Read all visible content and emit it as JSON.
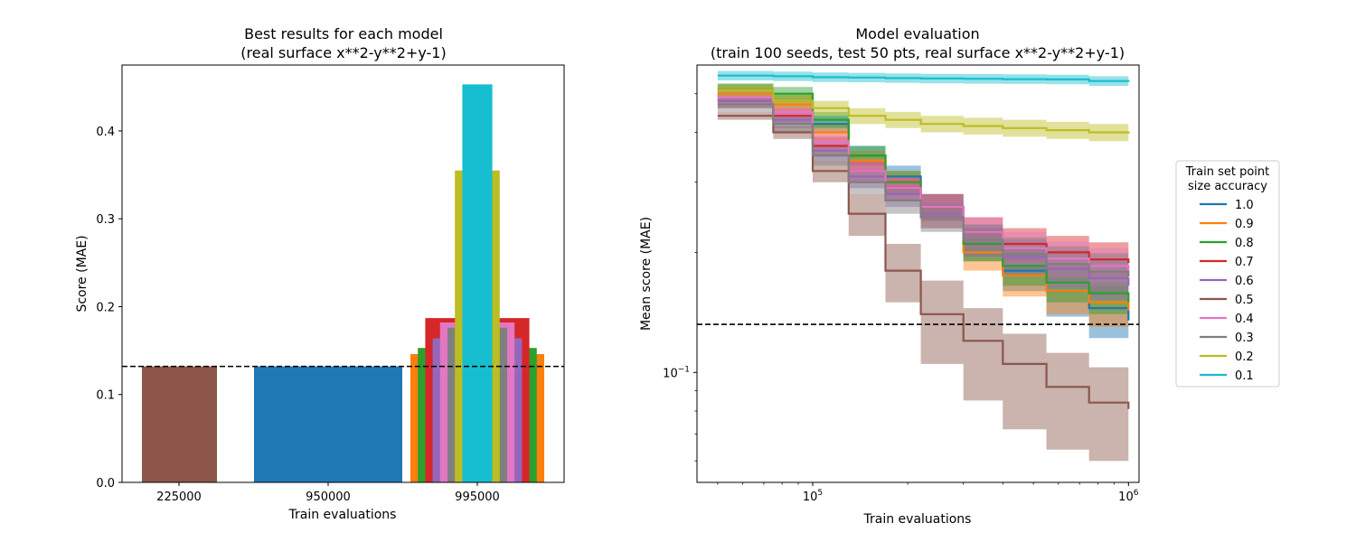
{
  "colors": {
    "tab_blue": "#1f77b4",
    "tab_orange": "#ff7f0e",
    "tab_green": "#2ca02c",
    "tab_red": "#d62728",
    "tab_purple": "#9467bd",
    "tab_brown": "#8c564b",
    "tab_pink": "#e377c2",
    "tab_gray": "#7f7f7f",
    "tab_olive": "#bcbd22",
    "tab_cyan": "#17becf"
  },
  "chart_data": [
    {
      "type": "bar",
      "title_line1": "Best results for each model",
      "title_line2": "(real surface x**2-y**2+y-1)",
      "xlabel": "Train evaluations",
      "ylabel": "Score (MAE)",
      "categories": [
        "225000",
        "950000",
        "995000"
      ],
      "ylim": [
        0,
        0.475
      ],
      "yticks": [
        "0.0",
        "0.1",
        "0.2",
        "0.3",
        "0.4"
      ],
      "yticks_values": [
        0.0,
        0.1,
        0.2,
        0.3,
        0.4
      ],
      "reference_line": 0.132,
      "grid": false,
      "bars": [
        {
          "group": 0,
          "accuracy": "0.5",
          "value": 0.132,
          "color": "#8c564b"
        },
        {
          "group": 1,
          "accuracy": "1.0",
          "value": 0.132,
          "color": "#1f77b4"
        },
        {
          "group": 2,
          "accuracy": "0.9",
          "value": 0.146,
          "color": "#ff7f0e"
        },
        {
          "group": 2,
          "accuracy": "0.8",
          "value": 0.153,
          "color": "#2ca02c"
        },
        {
          "group": 2,
          "accuracy": "0.7",
          "value": 0.187,
          "color": "#d62728"
        },
        {
          "group": 2,
          "accuracy": "0.6",
          "value": 0.164,
          "color": "#9467bd"
        },
        {
          "group": 2,
          "accuracy": "0.4",
          "value": 0.182,
          "color": "#e377c2"
        },
        {
          "group": 2,
          "accuracy": "0.3",
          "value": 0.176,
          "color": "#7f7f7f"
        },
        {
          "group": 2,
          "accuracy": "0.2",
          "value": 0.355,
          "color": "#bcbd22"
        },
        {
          "group": 2,
          "accuracy": "0.1",
          "value": 0.453,
          "color": "#17becf"
        }
      ]
    },
    {
      "type": "line",
      "title_line1": "Model evaluation",
      "title_line2": "(train 100 seeds, test 50 pts, real surface x**2-y**2+y-1)",
      "xlabel": "Train evaluations",
      "ylabel": "Mean score (MAE)",
      "xscale": "log",
      "yscale": "log",
      "xlim": [
        43000,
        1080000
      ],
      "ylim": [
        0.053,
        0.59
      ],
      "x_major_ticks": [
        {
          "base": "10",
          "exp": "5",
          "value": 100000
        },
        {
          "base": "10",
          "exp": "6",
          "value": 1000000
        }
      ],
      "y_major_ticks": [
        {
          "base": "10",
          "exp": "−1",
          "value": 0.1
        }
      ],
      "reference_line": 0.132,
      "grid": false,
      "legend_title_line1": "Train set point",
      "legend_title_line2": "size accuracy",
      "legend_position": "outside-right",
      "x": [
        50000,
        60000,
        75000,
        100000,
        130000,
        170000,
        220000,
        300000,
        400000,
        550000,
        750000,
        1000000
      ],
      "series": [
        {
          "name": "1.0",
          "color": "#1f77b4",
          "values": [
            0.51,
            0.51,
            0.48,
            0.42,
            0.35,
            0.31,
            0.26,
            0.21,
            0.18,
            0.16,
            0.145,
            0.135
          ],
          "lower": [
            0.49,
            0.49,
            0.46,
            0.4,
            0.33,
            0.29,
            0.24,
            0.19,
            0.16,
            0.138,
            0.122,
            0.112
          ],
          "upper": [
            0.53,
            0.53,
            0.5,
            0.44,
            0.37,
            0.33,
            0.28,
            0.23,
            0.2,
            0.182,
            0.168,
            0.158
          ]
        },
        {
          "name": "0.9",
          "color": "#ff7f0e",
          "values": [
            0.5,
            0.5,
            0.47,
            0.4,
            0.34,
            0.3,
            0.25,
            0.2,
            0.175,
            0.16,
            0.15,
            0.143
          ],
          "lower": [
            0.48,
            0.48,
            0.45,
            0.38,
            0.32,
            0.28,
            0.23,
            0.18,
            0.155,
            0.14,
            0.13,
            0.125
          ],
          "upper": [
            0.52,
            0.52,
            0.49,
            0.42,
            0.36,
            0.32,
            0.27,
            0.22,
            0.195,
            0.18,
            0.17,
            0.162
          ]
        },
        {
          "name": "0.8",
          "color": "#2ca02c",
          "values": [
            0.51,
            0.51,
            0.5,
            0.43,
            0.35,
            0.3,
            0.26,
            0.21,
            0.185,
            0.168,
            0.158,
            0.15
          ],
          "lower": [
            0.49,
            0.49,
            0.48,
            0.41,
            0.33,
            0.28,
            0.24,
            0.19,
            0.165,
            0.15,
            0.14,
            0.132
          ],
          "upper": [
            0.53,
            0.53,
            0.52,
            0.45,
            0.37,
            0.32,
            0.28,
            0.23,
            0.205,
            0.188,
            0.178,
            0.17
          ]
        },
        {
          "name": "0.7",
          "color": "#d62728",
          "values": [
            0.48,
            0.48,
            0.44,
            0.37,
            0.32,
            0.29,
            0.26,
            0.225,
            0.21,
            0.2,
            0.192,
            0.188
          ],
          "lower": [
            0.46,
            0.46,
            0.42,
            0.35,
            0.3,
            0.27,
            0.24,
            0.205,
            0.19,
            0.18,
            0.172,
            0.168
          ],
          "upper": [
            0.5,
            0.5,
            0.46,
            0.39,
            0.34,
            0.31,
            0.28,
            0.245,
            0.23,
            0.22,
            0.212,
            0.208
          ]
        },
        {
          "name": "0.6",
          "color": "#9467bd",
          "values": [
            0.48,
            0.48,
            0.43,
            0.36,
            0.31,
            0.28,
            0.25,
            0.215,
            0.195,
            0.182,
            0.172,
            0.165
          ],
          "lower": [
            0.46,
            0.46,
            0.41,
            0.34,
            0.29,
            0.26,
            0.23,
            0.195,
            0.175,
            0.162,
            0.152,
            0.145
          ],
          "upper": [
            0.5,
            0.5,
            0.45,
            0.38,
            0.33,
            0.3,
            0.27,
            0.235,
            0.215,
            0.202,
            0.192,
            0.185
          ]
        },
        {
          "name": "0.5",
          "color": "#8c564b",
          "values": [
            0.44,
            0.44,
            0.4,
            0.32,
            0.25,
            0.18,
            0.14,
            0.12,
            0.105,
            0.092,
            0.084,
            0.081
          ],
          "lower": [
            0.43,
            0.43,
            0.385,
            0.3,
            0.22,
            0.15,
            0.105,
            0.085,
            0.072,
            0.064,
            0.06,
            0.058
          ],
          "upper": [
            0.45,
            0.45,
            0.415,
            0.34,
            0.28,
            0.21,
            0.17,
            0.145,
            0.125,
            0.112,
            0.103,
            0.1
          ]
        },
        {
          "name": "0.4",
          "color": "#e377c2",
          "values": [
            0.49,
            0.49,
            0.45,
            0.38,
            0.32,
            0.29,
            0.26,
            0.225,
            0.205,
            0.193,
            0.185,
            0.18
          ],
          "lower": [
            0.47,
            0.47,
            0.43,
            0.36,
            0.3,
            0.27,
            0.24,
            0.205,
            0.185,
            0.173,
            0.165,
            0.16
          ],
          "upper": [
            0.51,
            0.51,
            0.47,
            0.4,
            0.34,
            0.31,
            0.28,
            0.245,
            0.225,
            0.213,
            0.205,
            0.2
          ]
        },
        {
          "name": "0.3",
          "color": "#7f7f7f",
          "values": [
            0.47,
            0.47,
            0.42,
            0.35,
            0.3,
            0.27,
            0.245,
            0.215,
            0.198,
            0.187,
            0.179,
            0.174
          ],
          "lower": [
            0.45,
            0.45,
            0.4,
            0.33,
            0.28,
            0.25,
            0.225,
            0.195,
            0.178,
            0.167,
            0.159,
            0.154
          ],
          "upper": [
            0.49,
            0.49,
            0.44,
            0.37,
            0.32,
            0.29,
            0.265,
            0.235,
            0.218,
            0.207,
            0.199,
            0.194
          ]
        },
        {
          "name": "0.2",
          "color": "#bcbd22",
          "values": [
            0.51,
            0.51,
            0.48,
            0.46,
            0.44,
            0.43,
            0.42,
            0.415,
            0.41,
            0.405,
            0.4,
            0.397
          ],
          "lower": [
            0.49,
            0.49,
            0.46,
            0.44,
            0.42,
            0.41,
            0.4,
            0.395,
            0.39,
            0.385,
            0.38,
            0.377
          ],
          "upper": [
            0.53,
            0.53,
            0.5,
            0.48,
            0.46,
            0.45,
            0.44,
            0.435,
            0.43,
            0.425,
            0.42,
            0.417
          ]
        },
        {
          "name": "0.1",
          "color": "#17becf",
          "values": [
            0.555,
            0.555,
            0.553,
            0.55,
            0.549,
            0.547,
            0.546,
            0.545,
            0.544,
            0.543,
            0.538,
            0.535
          ],
          "lower": [
            0.54,
            0.54,
            0.538,
            0.535,
            0.534,
            0.532,
            0.531,
            0.53,
            0.529,
            0.528,
            0.523,
            0.52
          ],
          "upper": [
            0.57,
            0.57,
            0.568,
            0.565,
            0.564,
            0.562,
            0.561,
            0.56,
            0.559,
            0.558,
            0.553,
            0.55
          ]
        }
      ]
    }
  ]
}
